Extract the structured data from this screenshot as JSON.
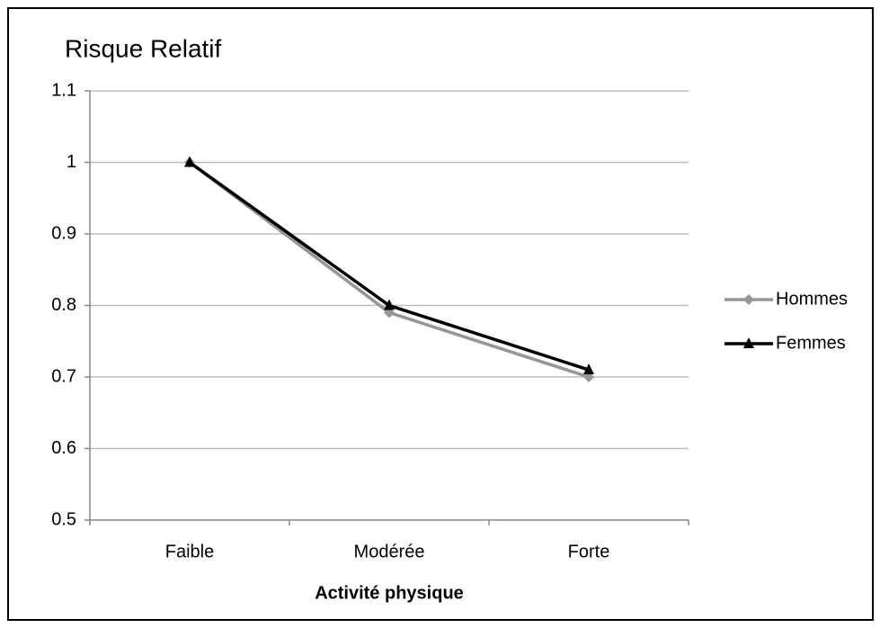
{
  "chart_data": {
    "type": "line",
    "title": "Risque Relatif",
    "x_label": "Activité physique",
    "categories": [
      "Faible",
      "Modérée",
      "Forte"
    ],
    "series": [
      {
        "name": "Hommes",
        "color": "#969696",
        "marker": "diamond",
        "values": [
          1,
          0.79,
          0.7
        ]
      },
      {
        "name": "Femmes",
        "color": "#000000",
        "marker": "triangle",
        "values": [
          1,
          0.8,
          0.71
        ]
      }
    ],
    "ylim": [
      0.5,
      1.1
    ],
    "yticks": [
      0.5,
      0.6,
      0.7,
      0.8,
      0.9,
      1,
      1.1
    ],
    "grid": true,
    "legend": "right"
  }
}
